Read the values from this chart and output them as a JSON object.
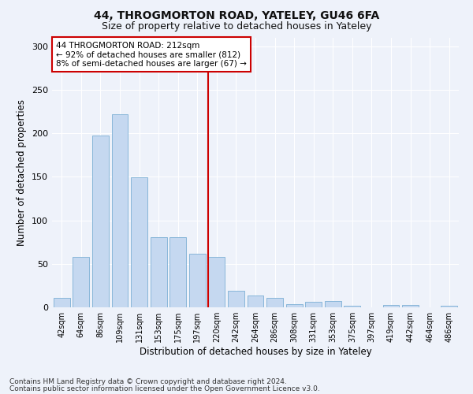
{
  "title1": "44, THROGMORTON ROAD, YATELEY, GU46 6FA",
  "title2": "Size of property relative to detached houses in Yateley",
  "xlabel": "Distribution of detached houses by size in Yateley",
  "ylabel": "Number of detached properties",
  "footer1": "Contains HM Land Registry data © Crown copyright and database right 2024.",
  "footer2": "Contains public sector information licensed under the Open Government Licence v3.0.",
  "bar_labels": [
    "42sqm",
    "64sqm",
    "86sqm",
    "109sqm",
    "131sqm",
    "153sqm",
    "175sqm",
    "197sqm",
    "220sqm",
    "242sqm",
    "264sqm",
    "286sqm",
    "308sqm",
    "331sqm",
    "353sqm",
    "375sqm",
    "397sqm",
    "419sqm",
    "442sqm",
    "464sqm",
    "486sqm"
  ],
  "bar_values": [
    11,
    58,
    197,
    222,
    149,
    81,
    81,
    62,
    58,
    19,
    14,
    11,
    4,
    6,
    7,
    2,
    0,
    3,
    3,
    0,
    2
  ],
  "bar_color": "#c5d8f0",
  "bar_edgecolor": "#7bafd4",
  "vline_x": 8.0,
  "vline_color": "#cc0000",
  "annotation_line1": "44 THROGMORTON ROAD: 212sqm",
  "annotation_line2": "← 92% of detached houses are smaller (812)",
  "annotation_line3": "8% of semi-detached houses are larger (67) →",
  "annotation_box_color": "#cc0000",
  "ylim": [
    0,
    310
  ],
  "yticks": [
    0,
    50,
    100,
    150,
    200,
    250,
    300
  ],
  "background_color": "#eef2fa",
  "grid_color": "#ffffff",
  "title1_fontsize": 10,
  "title2_fontsize": 9,
  "xlabel_fontsize": 8.5,
  "ylabel_fontsize": 8.5,
  "tick_fontsize": 7,
  "annotation_fontsize": 7.5,
  "footer_fontsize": 6.5
}
